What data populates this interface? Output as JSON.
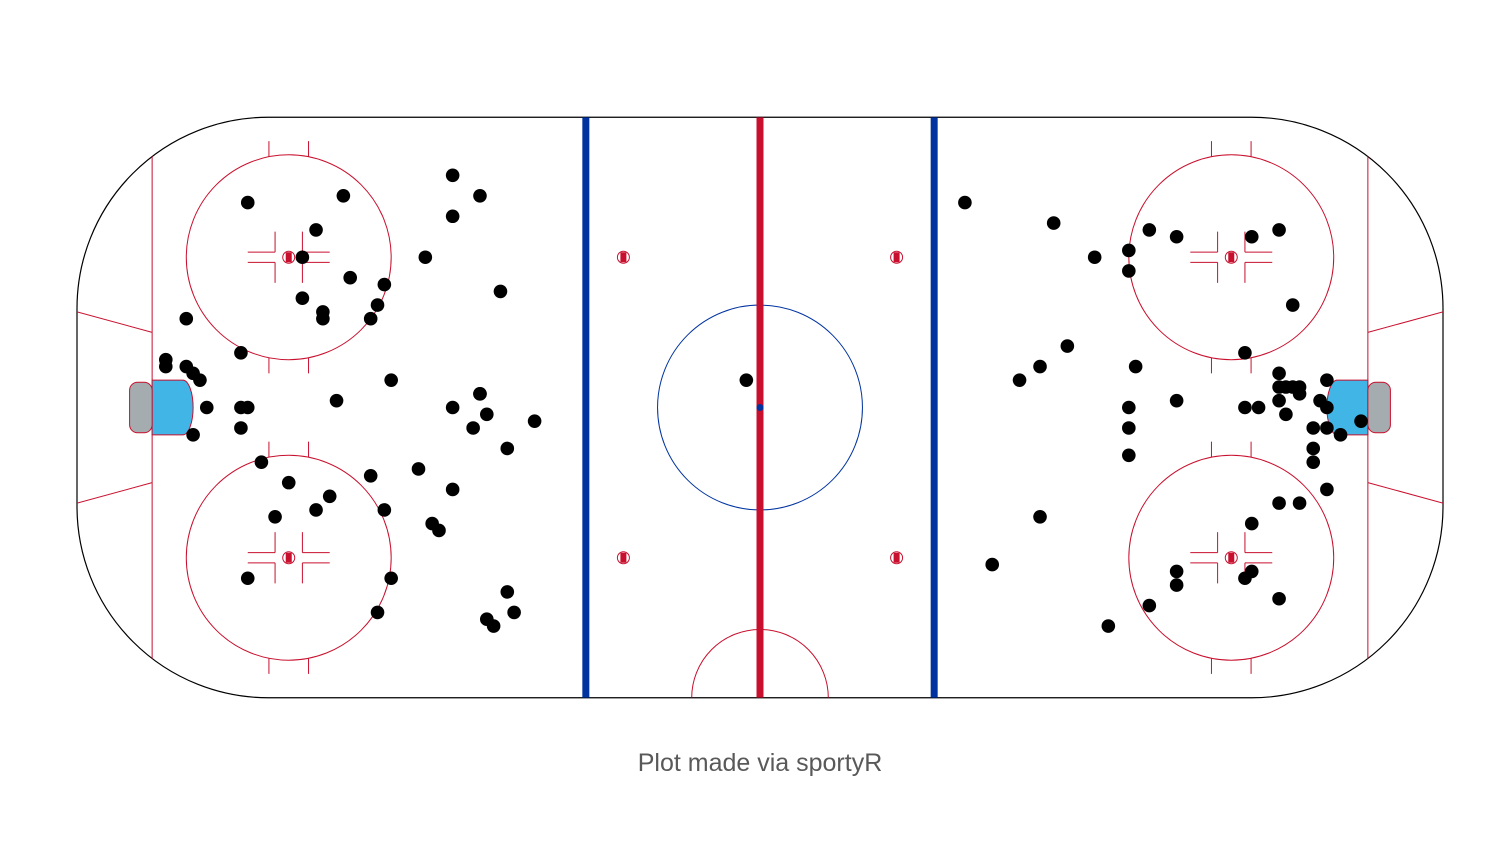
{
  "caption": "Plot made via sportyR",
  "colors": {
    "boards": "#000000",
    "center_line": "#c8102e",
    "blue_lines": "#0033a0",
    "goal_line": "#c8102e",
    "faceoff": "#c8102e",
    "center_circle": "#0033a0",
    "referee_crease": "#c8102e",
    "goal_crease": "#41b6e6",
    "net": "#a5acaf",
    "shots": "#000000"
  },
  "chart_data": {
    "type": "scatter",
    "title": "",
    "xlabel": "",
    "ylabel": "",
    "xlim": [
      -100,
      100
    ],
    "ylim": [
      -42.5,
      42.5
    ],
    "grid": false,
    "legend": "none",
    "series": [
      {
        "points": [
          [
            -75,
            30
          ],
          [
            -61,
            31
          ],
          [
            -45,
            34
          ],
          [
            -41,
            31
          ],
          [
            -45,
            28
          ],
          [
            -65,
            26
          ],
          [
            -67,
            22
          ],
          [
            -49,
            22
          ],
          [
            -60,
            19
          ],
          [
            -55,
            18
          ],
          [
            -67,
            16
          ],
          [
            -56,
            15
          ],
          [
            -64,
            13
          ],
          [
            -64,
            14
          ],
          [
            -57,
            13
          ],
          [
            -38,
            17
          ],
          [
            -84,
            13
          ],
          [
            -76,
            8
          ],
          [
            -87,
            7
          ],
          [
            -87,
            6
          ],
          [
            -84,
            6
          ],
          [
            -83,
            5
          ],
          [
            -82,
            4
          ],
          [
            -54,
            4
          ],
          [
            -62,
            1
          ],
          [
            -41,
            2
          ],
          [
            -45,
            0
          ],
          [
            -81,
            0
          ],
          [
            -76,
            0
          ],
          [
            -75,
            0
          ],
          [
            -41,
            2
          ],
          [
            -40,
            -1
          ],
          [
            -42,
            -3
          ],
          [
            -33,
            -2
          ],
          [
            -37,
            -6
          ],
          [
            -76,
            -3
          ],
          [
            -83,
            -4
          ],
          [
            -73,
            -8
          ],
          [
            -69,
            -11
          ],
          [
            -57,
            -10
          ],
          [
            -50,
            -9
          ],
          [
            -45,
            -12
          ],
          [
            -63,
            -13
          ],
          [
            -65,
            -15
          ],
          [
            -71,
            -16
          ],
          [
            -55,
            -15
          ],
          [
            -48,
            -17
          ],
          [
            -47,
            -18
          ],
          [
            -75,
            -25
          ],
          [
            -54,
            -25
          ],
          [
            -37,
            -27
          ],
          [
            -40,
            -31
          ],
          [
            -36,
            -30
          ],
          [
            -39,
            -32
          ],
          [
            -56,
            -30
          ],
          [
            -2,
            4
          ],
          [
            30,
            30
          ],
          [
            43,
            27
          ],
          [
            57,
            26
          ],
          [
            61,
            25
          ],
          [
            72,
            25
          ],
          [
            76,
            26
          ],
          [
            49,
            22
          ],
          [
            54,
            23
          ],
          [
            54,
            20
          ],
          [
            78,
            15
          ],
          [
            45,
            9
          ],
          [
            71,
            8
          ],
          [
            55,
            6
          ],
          [
            41,
            6
          ],
          [
            38,
            4
          ],
          [
            76,
            5
          ],
          [
            76,
            3
          ],
          [
            77,
            3
          ],
          [
            78,
            3
          ],
          [
            79,
            3
          ],
          [
            83,
            4
          ],
          [
            79,
            2
          ],
          [
            76,
            1
          ],
          [
            82,
            1
          ],
          [
            83,
            0
          ],
          [
            61,
            1
          ],
          [
            54,
            0
          ],
          [
            71,
            0
          ],
          [
            73,
            0
          ],
          [
            77,
            -1
          ],
          [
            88,
            -2
          ],
          [
            81,
            -3
          ],
          [
            83,
            -3
          ],
          [
            85,
            -4
          ],
          [
            54,
            -3
          ],
          [
            54,
            -7
          ],
          [
            81,
            -6
          ],
          [
            81,
            -8
          ],
          [
            83,
            -12
          ],
          [
            76,
            -14
          ],
          [
            79,
            -14
          ],
          [
            41,
            -16
          ],
          [
            72,
            -17
          ],
          [
            34,
            -23
          ],
          [
            61,
            -24
          ],
          [
            72,
            -24
          ],
          [
            61,
            -26
          ],
          [
            71,
            -25
          ],
          [
            57,
            -29
          ],
          [
            76,
            -28
          ],
          [
            51,
            -32
          ]
        ]
      }
    ]
  }
}
